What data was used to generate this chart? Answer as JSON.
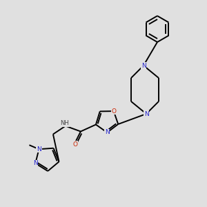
{
  "background_color": "#e0e0e0",
  "bond_color": "#000000",
  "atom_colors": {
    "N": "#2222cc",
    "O": "#cc2200",
    "H": "#444444"
  },
  "figsize": [
    3.0,
    3.0
  ],
  "dpi": 100,
  "lw": 1.4,
  "fs": 6.5
}
